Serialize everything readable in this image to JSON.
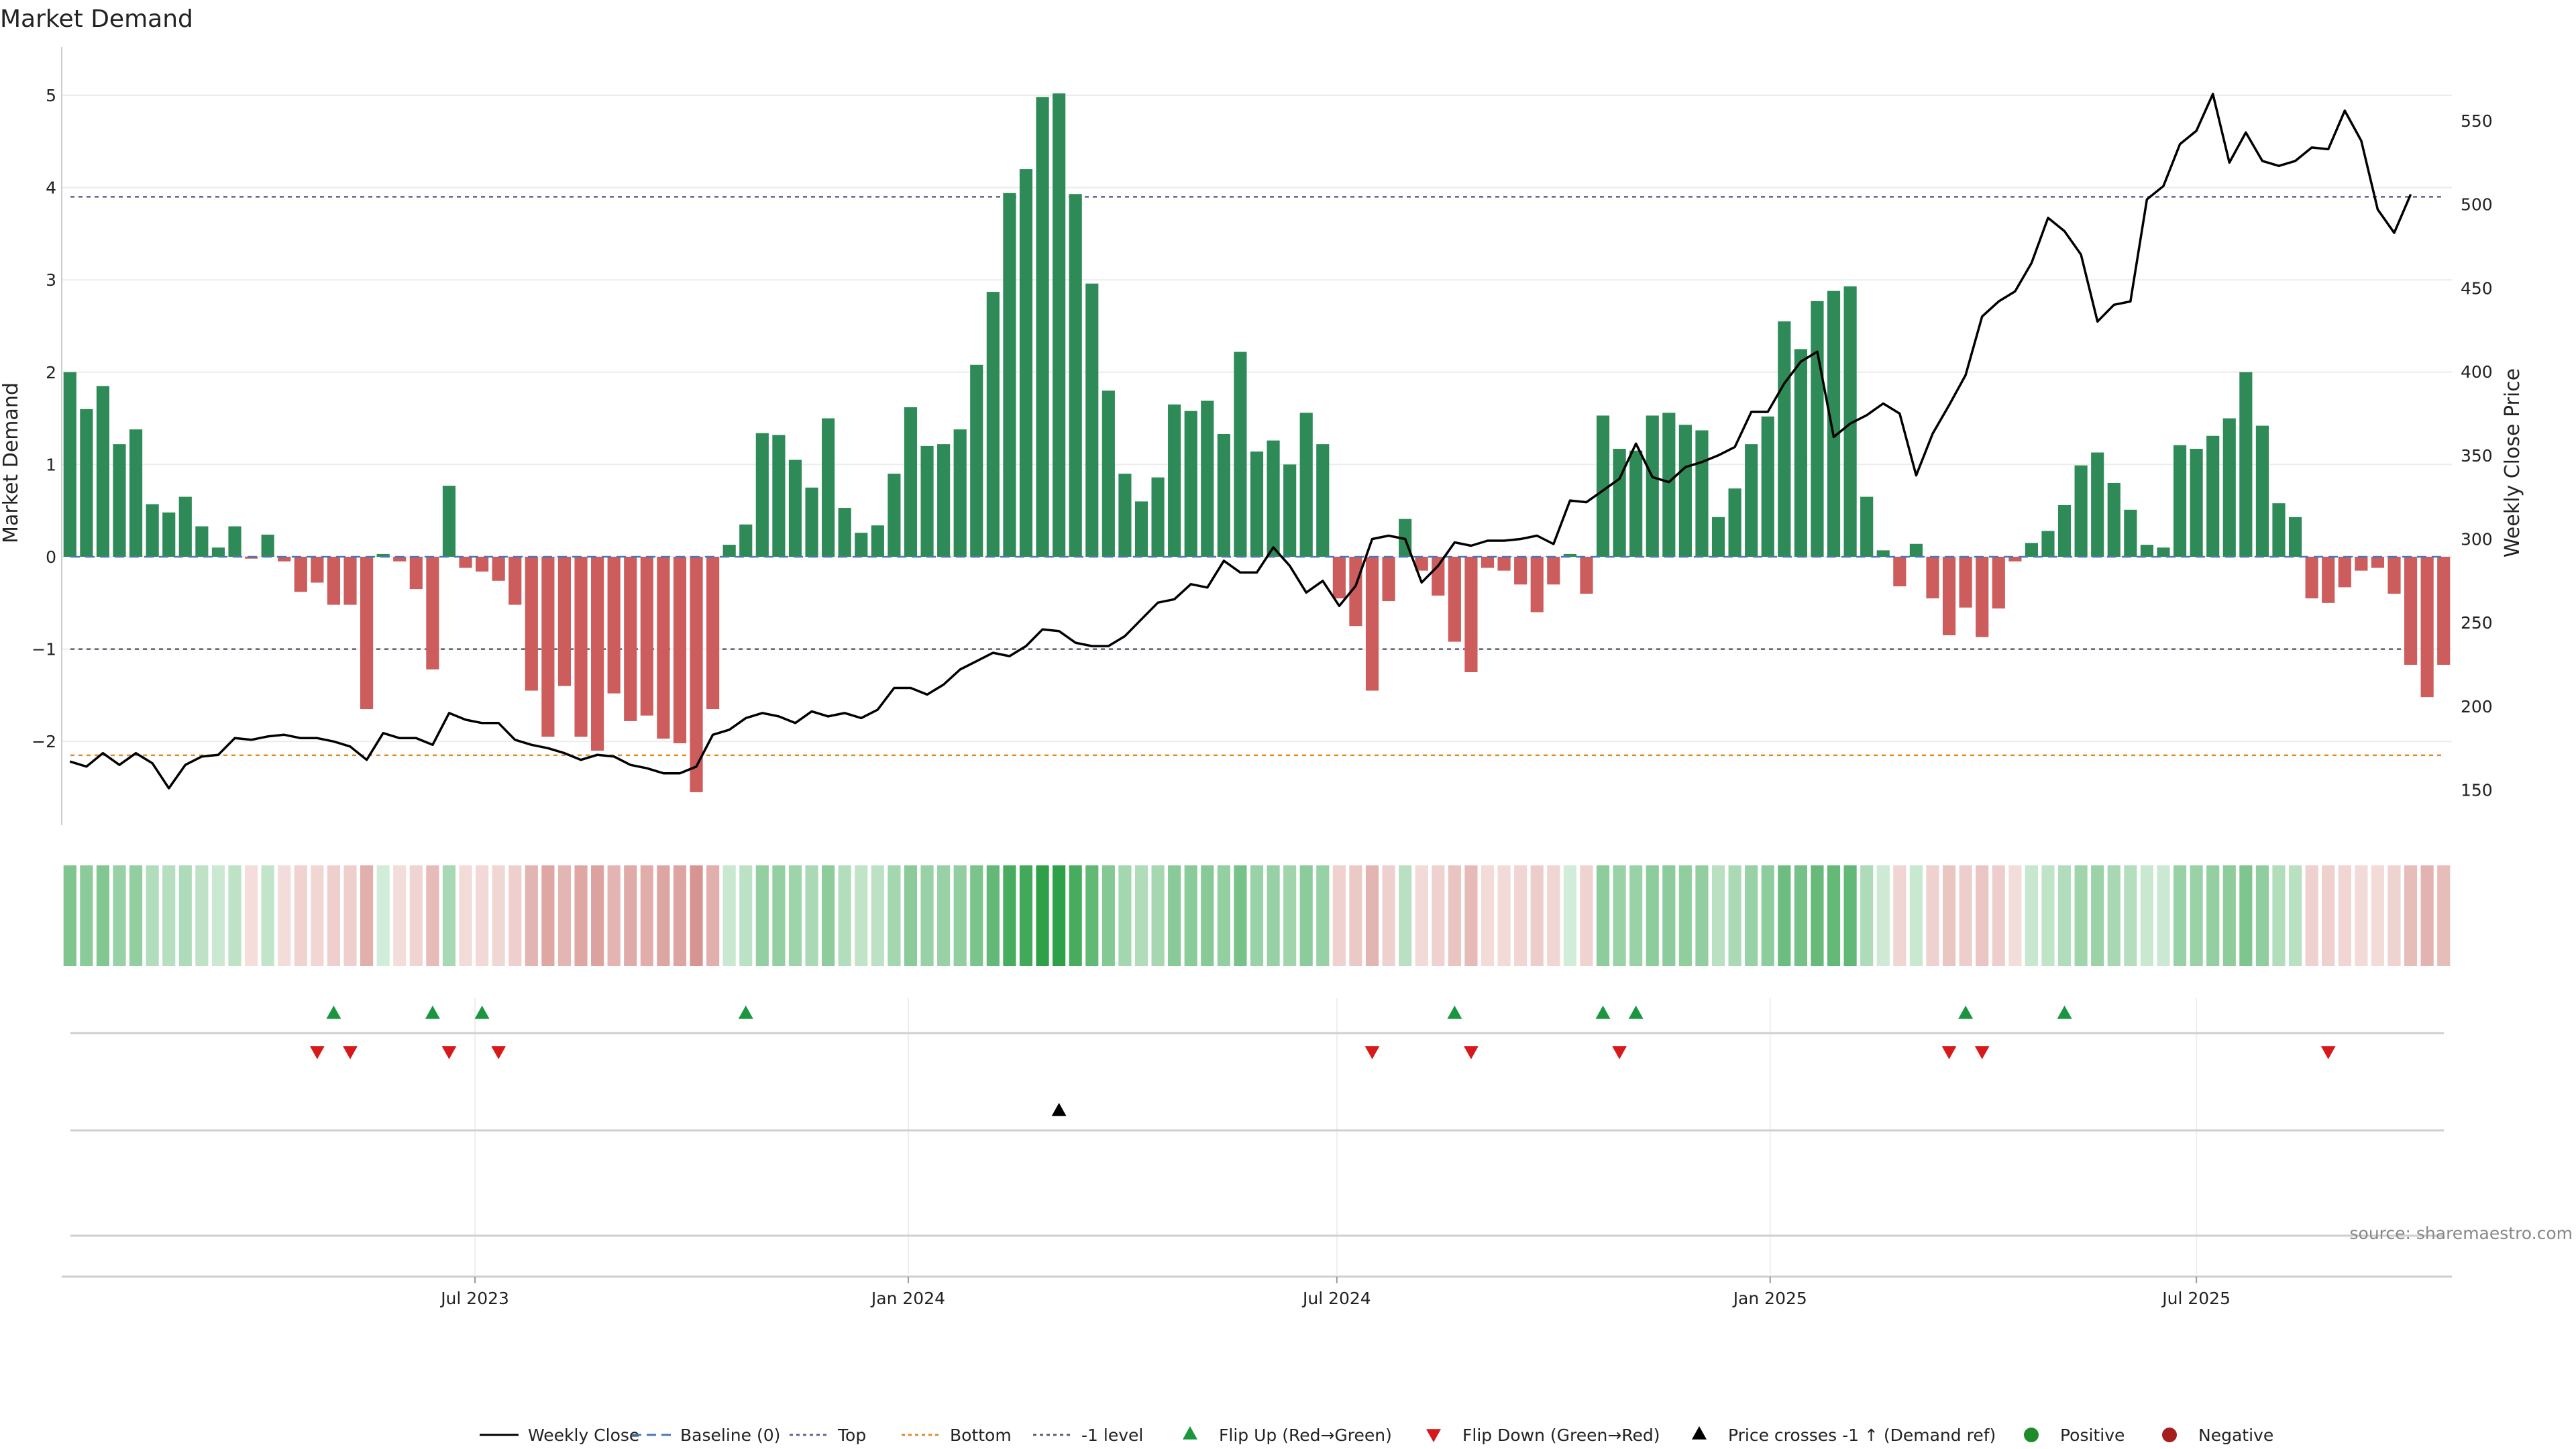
{
  "title": "Market Demand",
  "source_text": "source: sharemaestro.com",
  "chart_data": {
    "type": "bar",
    "y_left_label": "Market Demand",
    "y_right_label": "Weekly Close Price",
    "y_left_ticks": [
      "5",
      "4",
      "3",
      "2",
      "1",
      "0",
      "−1",
      "−2"
    ],
    "y_left_range": [
      -2.9,
      5.5
    ],
    "y_right_ticks": [
      "550",
      "500",
      "450",
      "400",
      "350",
      "300",
      "250",
      "200",
      "150"
    ],
    "y_right_range": [
      135,
      580
    ],
    "x_ticks": [
      "Jul 2023",
      "Jan 2024",
      "Jul 2024",
      "Jan 2025",
      "Jul 2025"
    ],
    "reference_lines": {
      "top": 3.9,
      "minus_one_level": -1,
      "bottom": -2.15
    },
    "demand": [
      2.0,
      1.6,
      1.85,
      1.22,
      1.38,
      0.57,
      0.48,
      0.65,
      0.33,
      0.1,
      0.33,
      -0.02,
      0.24,
      -0.05,
      -0.38,
      -0.28,
      -0.52,
      -0.52,
      -1.65,
      0.03,
      -0.05,
      -0.35,
      -1.22,
      0.77,
      -0.12,
      -0.16,
      -0.26,
      -0.52,
      -1.45,
      -1.95,
      -1.4,
      -1.95,
      -2.1,
      -1.48,
      -1.78,
      -1.72,
      -1.97,
      -2.02,
      -2.55,
      -1.65,
      0.13,
      0.35,
      1.34,
      1.32,
      1.05,
      0.75,
      1.5,
      0.53,
      0.26,
      0.34,
      0.9,
      1.62,
      1.2,
      1.22,
      1.38,
      2.08,
      2.87,
      3.94,
      4.2,
      4.98,
      5.02,
      3.93,
      2.96,
      1.8,
      0.9,
      0.6,
      0.86,
      1.65,
      1.58,
      1.69,
      1.33,
      2.22,
      1.14,
      1.26,
      1.0,
      1.56,
      1.22,
      -0.45,
      -0.75,
      -1.45,
      -0.48,
      0.41,
      -0.15,
      -0.42,
      -0.92,
      -1.25,
      -0.12,
      -0.15,
      -0.3,
      -0.6,
      -0.3,
      0.03,
      -0.4,
      1.53,
      1.17,
      1.15,
      1.53,
      1.56,
      1.43,
      1.37,
      0.43,
      0.74,
      1.22,
      1.52,
      2.55,
      2.25,
      2.77,
      2.88,
      2.93,
      0.65,
      0.07,
      -0.32,
      0.14,
      -0.45,
      -0.85,
      -0.55,
      -0.87,
      -0.56,
      -0.05,
      0.15,
      0.28,
      0.56,
      0.99,
      1.13,
      0.8,
      0.51,
      0.13,
      0.1,
      1.21,
      1.17,
      1.31,
      1.5,
      2.0,
      1.42,
      0.58,
      0.43,
      -0.45,
      -0.5,
      -0.33,
      -0.15,
      -0.12,
      -0.4,
      -1.17,
      -1.52,
      -1.17
    ],
    "weekly_close": [
      167,
      164,
      172,
      165,
      172,
      166,
      151,
      165,
      170,
      171,
      181,
      180,
      182,
      183,
      181,
      181,
      179,
      176,
      168,
      184,
      181,
      181,
      177,
      196,
      192,
      190,
      190,
      180,
      177,
      175,
      172,
      168,
      171,
      170,
      165,
      163,
      160,
      160,
      164,
      183,
      186,
      193,
      196,
      194,
      190,
      197,
      194,
      196,
      193,
      198,
      211,
      211,
      207,
      213,
      222,
      227,
      232,
      230,
      236,
      246,
      245,
      238,
      236,
      236,
      242,
      252,
      262,
      264,
      273,
      271,
      287,
      280,
      280,
      295,
      284,
      268,
      275,
      260,
      272,
      300,
      302,
      300,
      274,
      284,
      298,
      296,
      299,
      299,
      300,
      302,
      297,
      323,
      322,
      329,
      336,
      357,
      337,
      334,
      343,
      346,
      350,
      355,
      376,
      376,
      393,
      406,
      412,
      361,
      369,
      374,
      381,
      375,
      338,
      363,
      380,
      398,
      433,
      442,
      448,
      465,
      492,
      484,
      470,
      430,
      440,
      442,
      503,
      511,
      536,
      544,
      566,
      525,
      543,
      526,
      523,
      526,
      534,
      533,
      556,
      538,
      497,
      483,
      506
    ],
    "flip_up": [
      "2023-05-02",
      "2023-06-13",
      "2023-07-04",
      "2023-10-24",
      "2024-08-20",
      "2024-10-22",
      "2024-11-05",
      "2025-03-25",
      "2025-05-06"
    ],
    "flip_down": [
      "2023-04-25",
      "2023-05-09",
      "2023-06-20",
      "2023-07-11",
      "2024-07-16",
      "2024-08-27",
      "2024-10-29",
      "2025-03-18",
      "2025-04-01",
      "2025-08-26"
    ],
    "price_crosses_minus1_up": [
      "2024-03-05"
    ],
    "legend": [
      "Weekly Close",
      "Baseline (0)",
      "Top",
      "Bottom",
      "-1 level",
      "Flip Up (Red→Green)",
      "Flip Down (Green→Red)",
      "Price crosses -1 ↑ (Demand ref)",
      "Positive",
      "Negative"
    ],
    "colors": {
      "positive_bar": "#2e8b57",
      "negative_bar": "#cd5c5c",
      "price_line": "#000000",
      "baseline": "#4a78b5",
      "top_line": "#6a5f8c",
      "bottom_line": "#e08a2e",
      "minus1_line": "#5c5c70",
      "flip_up": "#1a9641",
      "flip_down": "#d7191c",
      "price_cross": "#000000",
      "positive_dot": "#1e8c2a",
      "negative_dot": "#a61d1d"
    }
  }
}
